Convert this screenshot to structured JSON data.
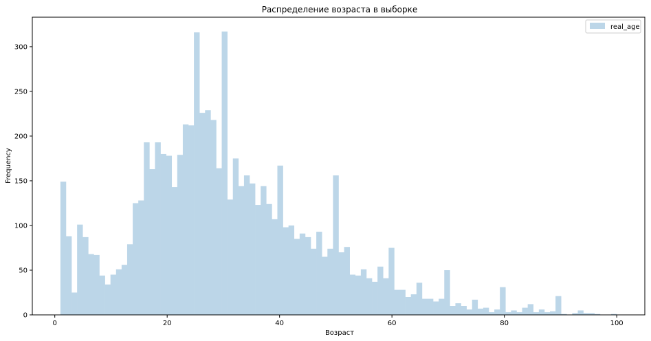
{
  "chart_data": {
    "type": "bar",
    "title": "Распределение возраста в выборке",
    "xlabel": "Возраст",
    "ylabel": "Frequency",
    "xlim": [
      -4,
      105
    ],
    "ylim": [
      0,
      333
    ],
    "x_ticks": [
      0,
      20,
      40,
      60,
      80,
      100
    ],
    "y_ticks": [
      0,
      50,
      100,
      150,
      200,
      250,
      300
    ],
    "grid": false,
    "legend": {
      "position": "top-right",
      "entries": [
        "real_age"
      ]
    },
    "bar_color": "#bcd6e8",
    "bin_start": 1,
    "bin_width": 0.99,
    "series": [
      {
        "name": "real_age",
        "values": [
          149,
          88,
          25,
          101,
          87,
          68,
          67,
          44,
          34,
          45,
          51,
          56,
          79,
          125,
          128,
          193,
          163,
          193,
          180,
          178,
          143,
          179,
          213,
          212,
          316,
          226,
          229,
          218,
          164,
          317,
          129,
          175,
          144,
          156,
          147,
          123,
          144,
          124,
          107,
          167,
          98,
          100,
          85,
          91,
          87,
          74,
          93,
          65,
          74,
          156,
          70,
          76,
          45,
          44,
          51,
          41,
          37,
          54,
          41,
          75,
          28,
          28,
          20,
          23,
          36,
          18,
          18,
          15,
          18,
          50,
          10,
          13,
          10,
          6,
          17,
          7,
          8,
          3,
          6,
          31,
          3,
          5,
          3,
          8,
          12,
          3,
          6,
          3,
          4,
          21,
          1,
          0,
          2,
          5,
          2,
          2,
          1,
          0,
          0,
          1
        ]
      }
    ]
  }
}
